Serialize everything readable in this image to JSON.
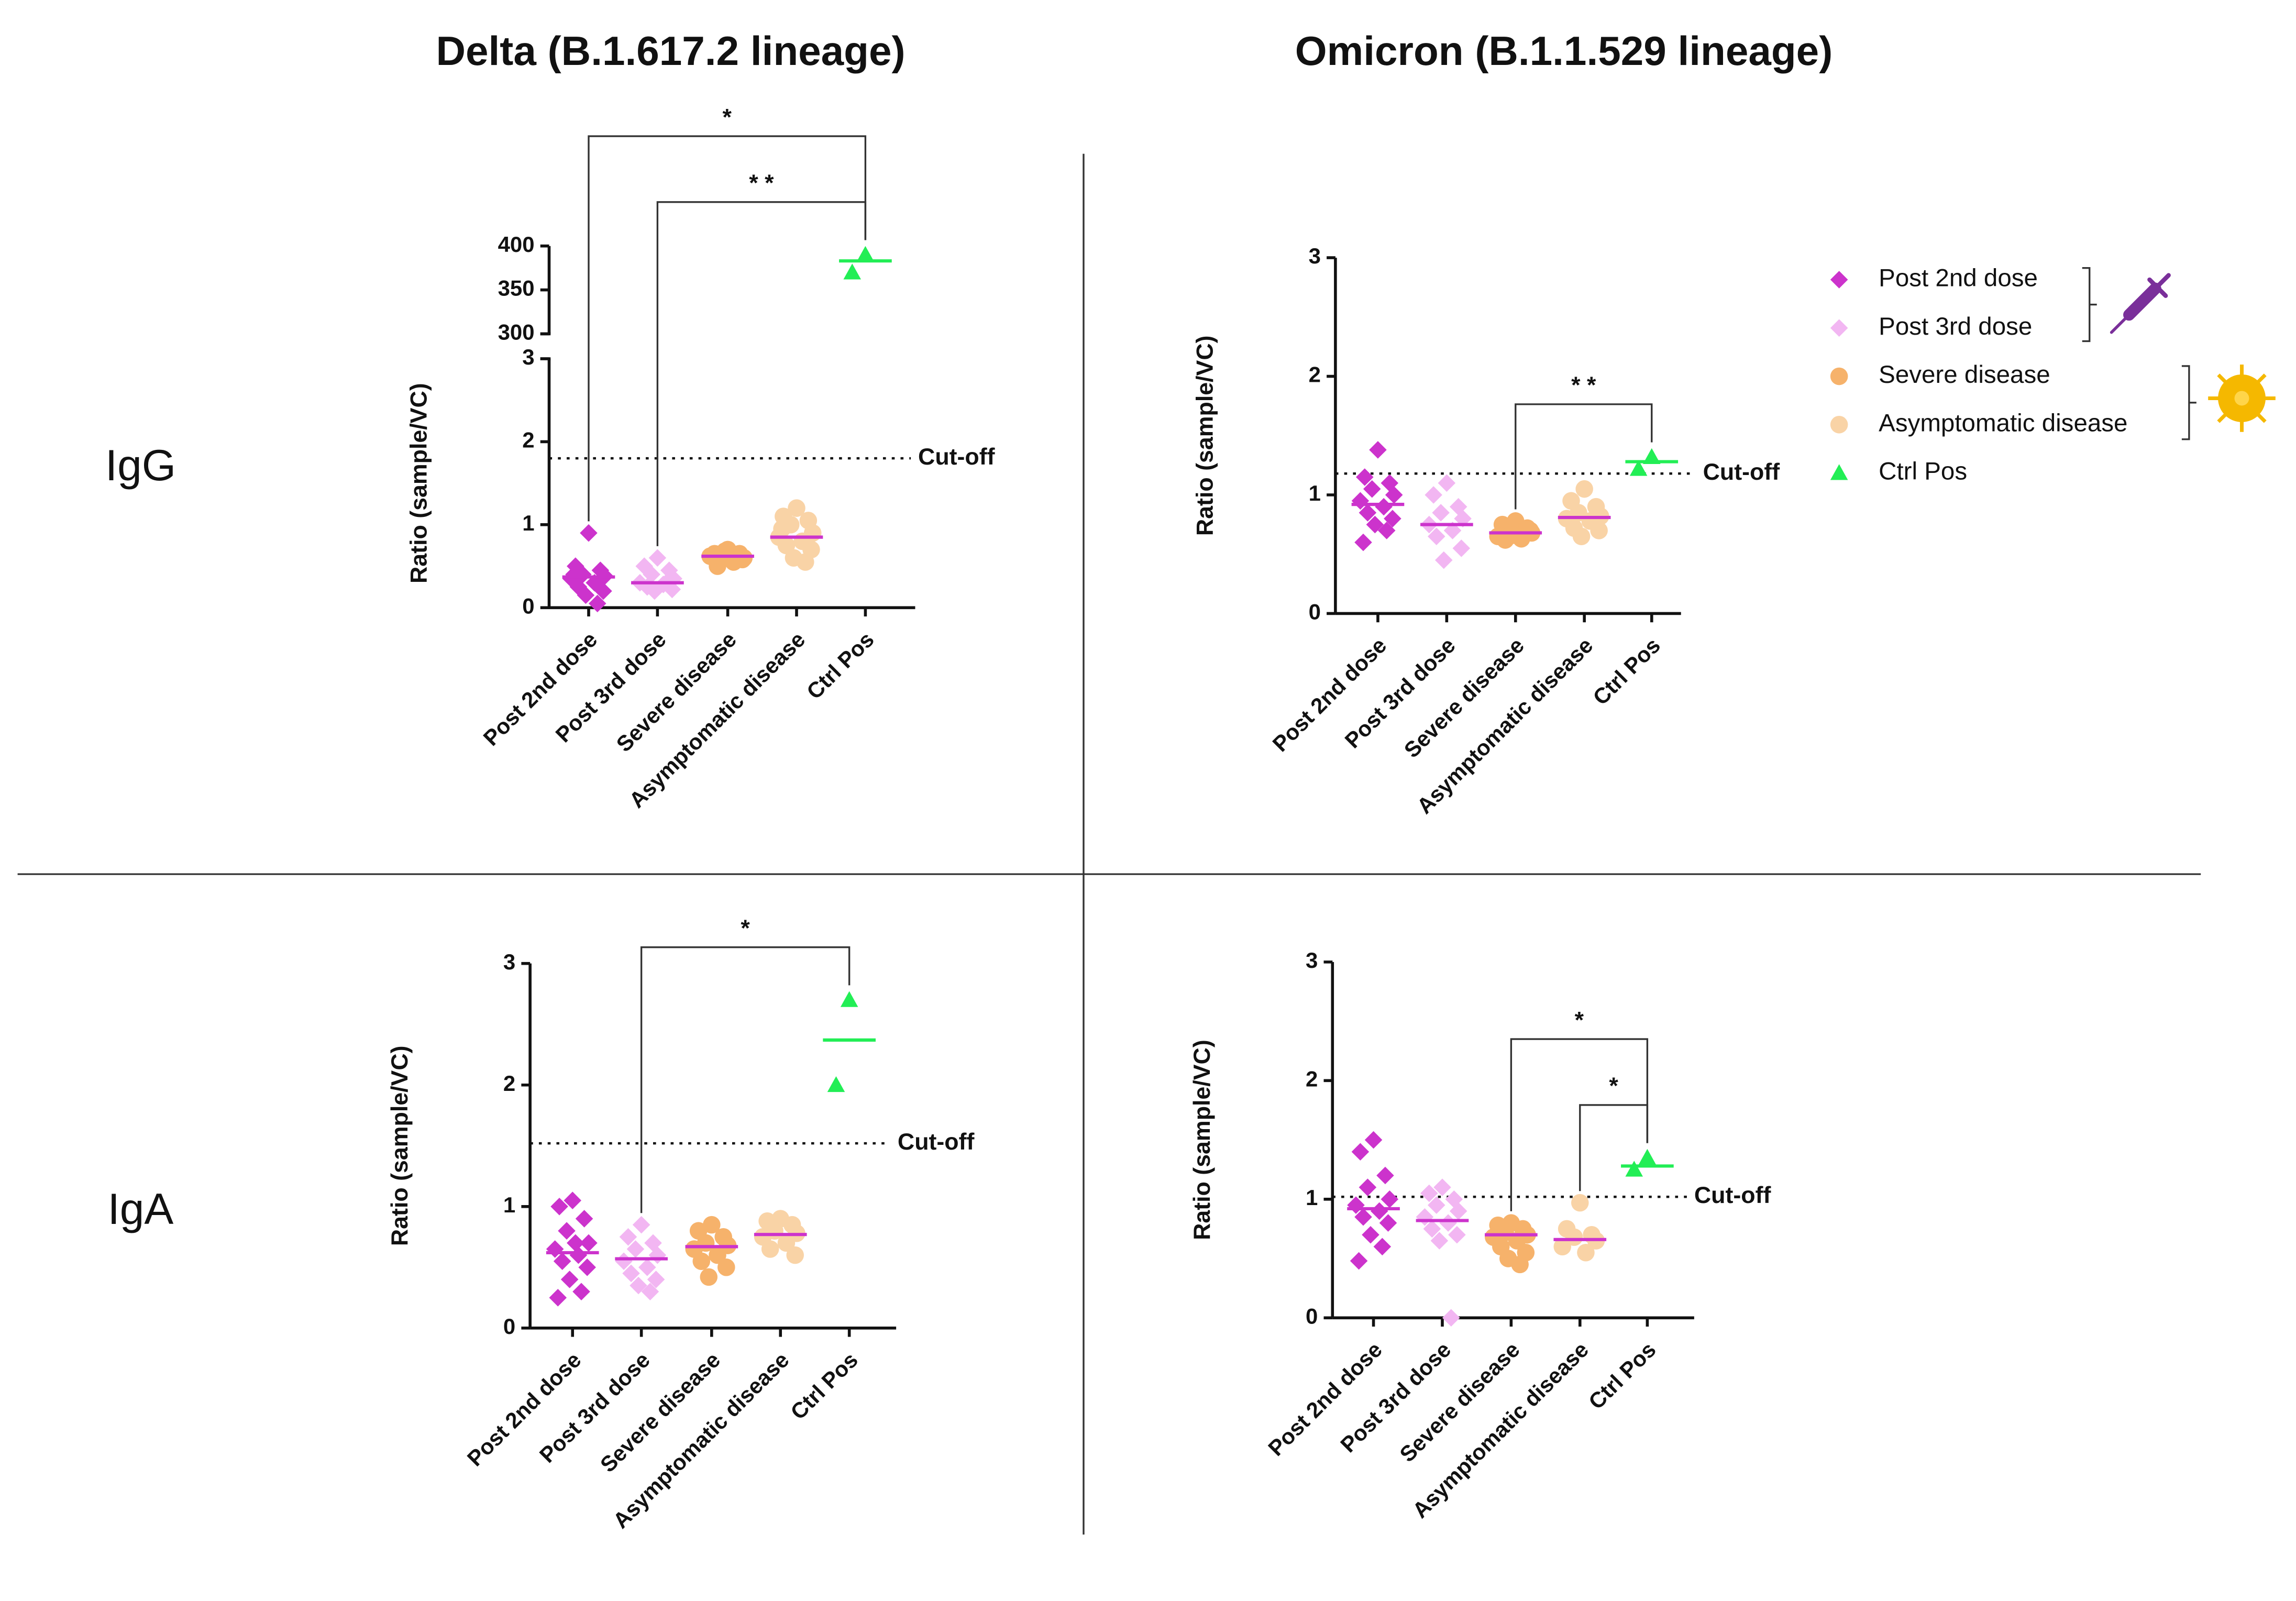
{
  "columns": [
    "Delta (B.1.617.2 lineage)",
    "Omicron (B.1.1.529 lineage)"
  ],
  "rows": [
    "IgG",
    "IgA"
  ],
  "legend": [
    {
      "name": "Post 2nd dose",
      "color": "#cc33cc",
      "marker": "diamond"
    },
    {
      "name": "Post 3rd dose",
      "color": "#f2b6f2",
      "marker": "diamond"
    },
    {
      "name": "Severe disease",
      "color": "#f6b26b",
      "marker": "circle"
    },
    {
      "name": "Asymptomatic disease",
      "color": "#f9d3a6",
      "marker": "circle"
    },
    {
      "name": "Ctrl Pos",
      "color": "#22ee55",
      "marker": "triangle"
    }
  ],
  "chart_data": [
    {
      "type": "strip",
      "ylabel": "Ratio (sample/VC)",
      "categories": [
        "Post 2nd dose",
        "Post 3rd dose",
        "Severe disease",
        "Asymptomatic disease",
        "Ctrl Pos"
      ],
      "values": [
        [
          0.9,
          0.5,
          0.45,
          0.4,
          0.38,
          0.35,
          0.3,
          0.25,
          0.2,
          0.15,
          0.05,
          0.4
        ],
        [
          0.6,
          0.5,
          0.45,
          0.4,
          0.35,
          0.3,
          0.28,
          0.25,
          0.22,
          0.2,
          0.3
        ],
        [
          0.7,
          0.65,
          0.65,
          0.6,
          0.6,
          0.62,
          0.55,
          0.5,
          0.58,
          0.68
        ],
        [
          1.2,
          1.1,
          1.05,
          1.0,
          0.9,
          0.85,
          0.8,
          0.75,
          0.7,
          0.6,
          0.55,
          0.95
        ],
        [
          390,
          370
        ]
      ],
      "medians": [
        0.37,
        0.3,
        0.62,
        0.85,
        383
      ],
      "ylim": [
        0,
        3
      ],
      "yticks": [
        0,
        1,
        2,
        3
      ],
      "ylim_upper": [
        300,
        400
      ],
      "yticks_upper": [
        300,
        350,
        400
      ],
      "cutoff": 1.8,
      "cutoff_label": "Cut-off",
      "brackets": [
        {
          "from": 0,
          "to": 4,
          "label": "*"
        },
        {
          "from": 1,
          "to": 4,
          "label": "* *"
        }
      ]
    },
    {
      "type": "strip",
      "ylabel": "Ratio (sample/VC)",
      "categories": [
        "Post 2nd dose",
        "Post 3rd dose",
        "Severe disease",
        "Asymptomatic disease",
        "Ctrl Pos"
      ],
      "values": [
        [
          1.38,
          1.15,
          1.1,
          1.05,
          1.0,
          0.95,
          0.9,
          0.85,
          0.8,
          0.75,
          0.7,
          0.6
        ],
        [
          1.1,
          1.0,
          0.9,
          0.85,
          0.8,
          0.75,
          0.7,
          0.65,
          0.55,
          0.45
        ],
        [
          0.78,
          0.75,
          0.72,
          0.7,
          0.68,
          0.65,
          0.63,
          0.62,
          0.7,
          0.66
        ],
        [
          1.05,
          0.95,
          0.9,
          0.85,
          0.82,
          0.8,
          0.78,
          0.72,
          0.7,
          0.65
        ],
        [
          1.32,
          1.22
        ]
      ],
      "medians": [
        0.92,
        0.75,
        0.68,
        0.81,
        1.28
      ],
      "ylim": [
        0,
        3
      ],
      "yticks": [
        0,
        1,
        2,
        3
      ],
      "cutoff": 1.18,
      "cutoff_label": "Cut-off",
      "brackets": [
        {
          "from": 2,
          "to": 4,
          "label": "* *"
        }
      ]
    },
    {
      "type": "strip",
      "ylabel": "Ratio (sample/VC)",
      "categories": [
        "Post 2nd dose",
        "Post 3rd dose",
        "Severe disease",
        "Asymptomatic disease",
        "Ctrl Pos"
      ],
      "values": [
        [
          1.05,
          1.0,
          0.9,
          0.8,
          0.7,
          0.65,
          0.6,
          0.55,
          0.5,
          0.4,
          0.3,
          0.25,
          0.7
        ],
        [
          0.85,
          0.75,
          0.7,
          0.65,
          0.6,
          0.55,
          0.5,
          0.45,
          0.4,
          0.35,
          0.3
        ],
        [
          0.85,
          0.8,
          0.75,
          0.7,
          0.68,
          0.65,
          0.6,
          0.55,
          0.5,
          0.42
        ],
        [
          0.9,
          0.88,
          0.85,
          0.8,
          0.78,
          0.75,
          0.7,
          0.65,
          0.6
        ],
        [
          2.7,
          2.0
        ]
      ],
      "medians": [
        0.62,
        0.57,
        0.67,
        0.77,
        2.37
      ],
      "ylim": [
        0,
        3
      ],
      "yticks": [
        0,
        1,
        2,
        3
      ],
      "cutoff": 1.52,
      "cutoff_label": "Cut-off",
      "brackets": [
        {
          "from": 1,
          "to": 4,
          "label": "*"
        }
      ]
    },
    {
      "type": "strip",
      "ylabel": "Ratio (sample/VC)",
      "categories": [
        "Post 2nd dose",
        "Post 3rd dose",
        "Severe disease",
        "Asymptomatic disease",
        "Ctrl Pos"
      ],
      "values": [
        [
          1.5,
          1.4,
          1.2,
          1.1,
          1.0,
          0.95,
          0.9,
          0.85,
          0.8,
          0.7,
          0.6,
          0.48
        ],
        [
          1.1,
          1.05,
          1.0,
          0.95,
          0.9,
          0.85,
          0.8,
          0.75,
          0.7,
          0.65,
          0.0
        ],
        [
          0.8,
          0.78,
          0.75,
          0.72,
          0.7,
          0.68,
          0.65,
          0.6,
          0.55,
          0.5,
          0.45
        ],
        [
          0.97,
          0.75,
          0.7,
          0.68,
          0.65,
          0.6,
          0.55
        ],
        [
          1.35,
          1.25
        ]
      ],
      "medians": [
        0.92,
        0.82,
        0.7,
        0.66,
        1.28
      ],
      "ylim": [
        0,
        3
      ],
      "yticks": [
        0,
        1,
        2,
        3
      ],
      "cutoff": 1.02,
      "cutoff_label": "Cut-off",
      "brackets": [
        {
          "from": 3,
          "to": 4,
          "label": "*"
        },
        {
          "from": 2,
          "to": 4,
          "label": "*"
        }
      ]
    }
  ]
}
